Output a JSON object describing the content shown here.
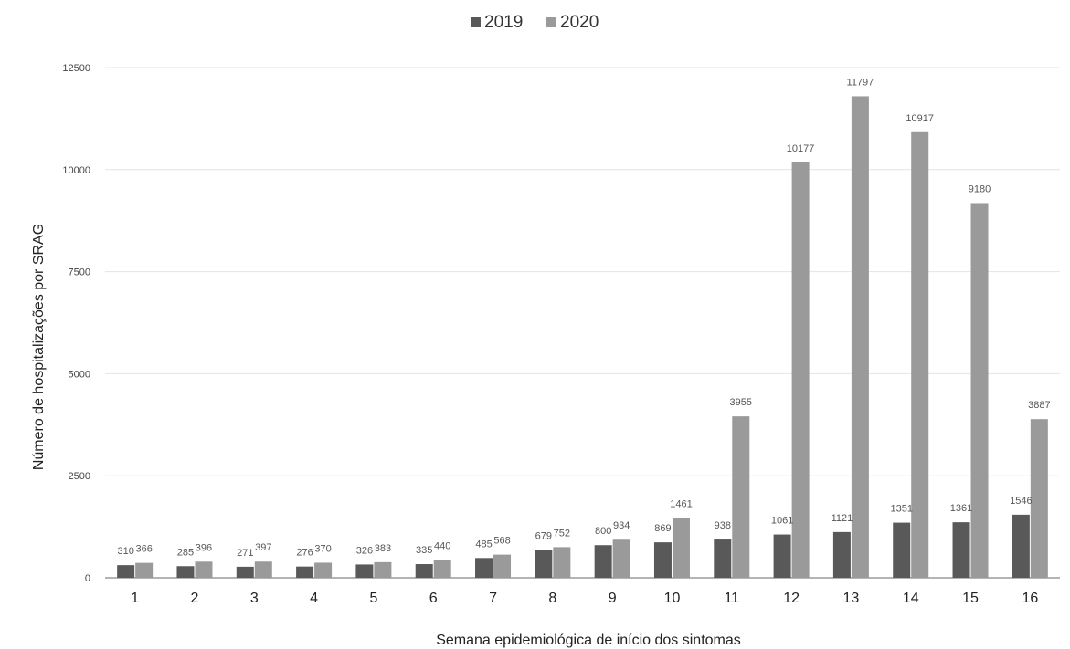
{
  "chart_data": {
    "type": "bar",
    "xlabel": "Semana epidemiológica de início dos sintomas",
    "ylabel": "Número de hospitalizações por SRAG",
    "ylim": [
      0,
      12500
    ],
    "yticks": [
      0,
      2500,
      5000,
      7500,
      10000,
      12500
    ],
    "grid": true,
    "legend_position": "top-center",
    "categories": [
      "1",
      "2",
      "3",
      "4",
      "5",
      "6",
      "7",
      "8",
      "9",
      "10",
      "11",
      "12",
      "13",
      "14",
      "15",
      "16"
    ],
    "series": [
      {
        "name": "2019",
        "color": "#595959",
        "values": [
          310,
          285,
          271,
          276,
          326,
          335,
          485,
          679,
          800,
          869,
          938,
          1061,
          1121,
          1351,
          1361,
          1546
        ],
        "labels": [
          "310",
          "285",
          "271",
          "276",
          "326",
          "335",
          "485",
          "679",
          "800",
          "869",
          "938",
          "1061",
          "1121",
          "1351",
          "1361",
          "1546"
        ]
      },
      {
        "name": "2020",
        "color": "#9a9a9a",
        "values": [
          366,
          396,
          397,
          370,
          383,
          440,
          568,
          752,
          934,
          1461,
          3955,
          10177,
          11797,
          10917,
          9180,
          3887
        ],
        "labels": [
          "366",
          "396",
          "397",
          "370",
          "383",
          "440",
          "568",
          "752",
          "934",
          "1461",
          "3955",
          "10177",
          "11797",
          "10917",
          "9180",
          "3887"
        ]
      }
    ]
  }
}
